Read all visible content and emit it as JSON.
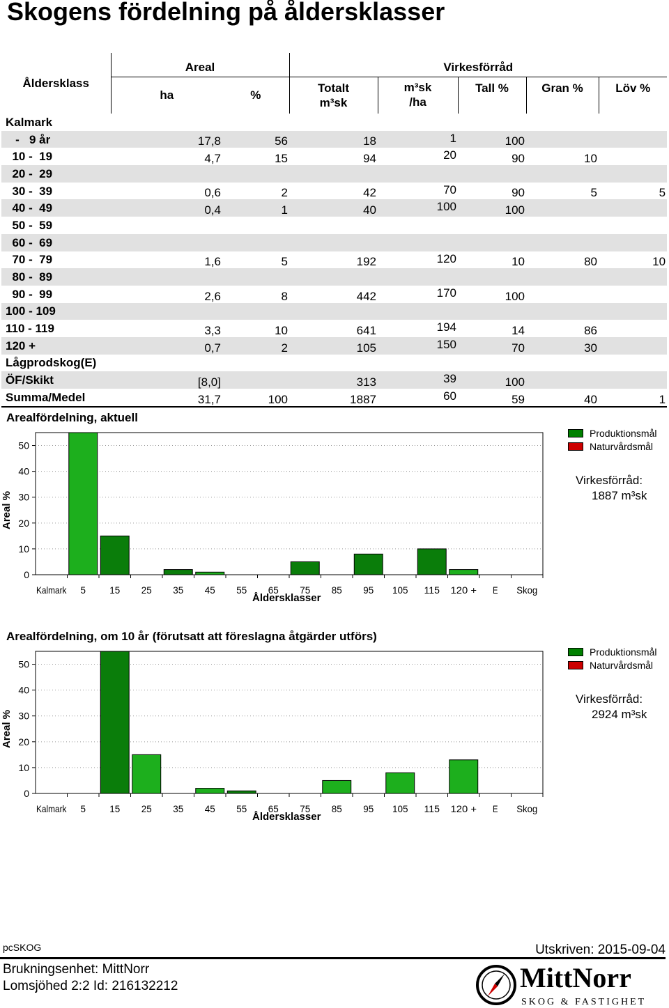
{
  "page_title": "Skogens fördelning på åldersklasser",
  "table": {
    "header": {
      "aldersklass": "Åldersklass",
      "areal": "Areal",
      "ha": "ha",
      "pct": "%",
      "virkesforrad": "Virkesförråd",
      "totalt_1": "Totalt",
      "totalt_2": "m³sk",
      "m3ha_1": "m³sk",
      "m3ha_2": "/ha",
      "tall": "Tall %",
      "gran": "Gran %",
      "lov": "Löv %"
    },
    "rows": [
      {
        "klass": "Kalmark",
        "ha": "",
        "pct": "",
        "tot": "",
        "m3ha": "",
        "tall": "",
        "gran": "",
        "lov": ""
      },
      {
        "klass": "   -   9 år",
        "ha": "17,8",
        "pct": "56",
        "tot": "18",
        "m3ha": "1",
        "tall": "100",
        "gran": "",
        "lov": ""
      },
      {
        "klass": "  10 -  19",
        "ha": "4,7",
        "pct": "15",
        "tot": "94",
        "m3ha": "20",
        "tall": "90",
        "gran": "10",
        "lov": ""
      },
      {
        "klass": "  20 -  29",
        "ha": "",
        "pct": "",
        "tot": "",
        "m3ha": "",
        "tall": "",
        "gran": "",
        "lov": ""
      },
      {
        "klass": "  30 -  39",
        "ha": "0,6",
        "pct": "2",
        "tot": "42",
        "m3ha": "70",
        "tall": "90",
        "gran": "5",
        "lov": "5"
      },
      {
        "klass": "  40 -  49",
        "ha": "0,4",
        "pct": "1",
        "tot": "40",
        "m3ha": "100",
        "tall": "100",
        "gran": "",
        "lov": ""
      },
      {
        "klass": "  50 -  59",
        "ha": "",
        "pct": "",
        "tot": "",
        "m3ha": "",
        "tall": "",
        "gran": "",
        "lov": ""
      },
      {
        "klass": "  60 -  69",
        "ha": "",
        "pct": "",
        "tot": "",
        "m3ha": "",
        "tall": "",
        "gran": "",
        "lov": ""
      },
      {
        "klass": "  70 -  79",
        "ha": "1,6",
        "pct": "5",
        "tot": "192",
        "m3ha": "120",
        "tall": "10",
        "gran": "80",
        "lov": "10"
      },
      {
        "klass": "  80 -  89",
        "ha": "",
        "pct": "",
        "tot": "",
        "m3ha": "",
        "tall": "",
        "gran": "",
        "lov": ""
      },
      {
        "klass": "  90 -  99",
        "ha": "2,6",
        "pct": "8",
        "tot": "442",
        "m3ha": "170",
        "tall": "100",
        "gran": "",
        "lov": ""
      },
      {
        "klass": "100 - 109",
        "ha": "",
        "pct": "",
        "tot": "",
        "m3ha": "",
        "tall": "",
        "gran": "",
        "lov": ""
      },
      {
        "klass": "110 - 119",
        "ha": "3,3",
        "pct": "10",
        "tot": "641",
        "m3ha": "194",
        "tall": "14",
        "gran": "86",
        "lov": ""
      },
      {
        "klass": "120 +",
        "ha": "0,7",
        "pct": "2",
        "tot": "105",
        "m3ha": "150",
        "tall": "70",
        "gran": "30",
        "lov": ""
      },
      {
        "klass": "Lågprodskog(E)",
        "ha": "",
        "pct": "",
        "tot": "",
        "m3ha": "",
        "tall": "",
        "gran": "",
        "lov": ""
      },
      {
        "klass": "ÖF/Skikt",
        "ha": "[8,0]",
        "pct": "",
        "tot": "313",
        "m3ha": "39",
        "tall": "100",
        "gran": "",
        "lov": ""
      },
      {
        "klass": "Summa/Medel",
        "ha": "31,7",
        "pct": "100",
        "tot": "1887",
        "m3ha": "60",
        "tall": "59",
        "gran": "40",
        "lov": "1"
      }
    ]
  },
  "legend": {
    "produktion": "Produktionsmål",
    "natur": "Naturvårdsmål",
    "produktion_color": "#008000",
    "natur_color": "#cc0000"
  },
  "chart_data": [
    {
      "type": "bar",
      "title": "Arealfördelning, aktuell",
      "xlabel": "Åldersklasser",
      "ylabel": "Areal %",
      "ylim": [
        0,
        55
      ],
      "yticks": [
        0,
        10,
        20,
        30,
        40,
        50
      ],
      "grid": true,
      "legend_position": "right",
      "categories": [
        "Kalmark",
        "5",
        "15",
        "25",
        "35",
        "45",
        "55",
        "65",
        "75",
        "85",
        "95",
        "105",
        "115",
        "120 +",
        "E",
        "Skog"
      ],
      "series": [
        {
          "name": "Produktionsmål",
          "values": [
            0,
            56,
            15,
            0,
            2,
            1,
            0,
            0,
            5,
            0,
            8,
            0,
            10,
            2,
            0,
            0
          ]
        },
        {
          "name": "Naturvårdsmål",
          "values": [
            0,
            0,
            0,
            0,
            0,
            0,
            0,
            0,
            0,
            0,
            0,
            0,
            0,
            0,
            0,
            0
          ]
        }
      ],
      "virkesforrad_label": "Virkesförråd:",
      "virkesforrad_value": "1887 m³sk"
    },
    {
      "type": "bar",
      "title": "Arealfördelning, om 10 år (förutsatt att föreslagna åtgärder utförs)",
      "xlabel": "Åldersklasser",
      "ylabel": "Areal %",
      "ylim": [
        0,
        55
      ],
      "yticks": [
        0,
        10,
        20,
        30,
        40,
        50
      ],
      "grid": true,
      "legend_position": "right",
      "categories": [
        "Kalmark",
        "5",
        "15",
        "25",
        "35",
        "45",
        "55",
        "65",
        "75",
        "85",
        "95",
        "105",
        "115",
        "120 +",
        "E",
        "Skog"
      ],
      "series": [
        {
          "name": "Produktionsmål",
          "values": [
            0,
            0,
            56,
            15,
            0,
            2,
            1,
            0,
            0,
            5,
            0,
            8,
            0,
            13,
            0,
            0
          ]
        },
        {
          "name": "Naturvårdsmål",
          "values": [
            0,
            0,
            0,
            0,
            0,
            0,
            0,
            0,
            0,
            0,
            0,
            0,
            0,
            0,
            0,
            0
          ]
        }
      ],
      "virkesforrad_label": "Virkesförråd:",
      "virkesforrad_value": "2924 m³sk"
    }
  ],
  "footer": {
    "program": "pcSKOG",
    "utskriven": "Utskriven: 2015-09-04",
    "brukningsenhet": "Brukningsenhet: MittNorr",
    "id_line": "Lomsjöhed 2:2 Id: 216132212",
    "logo_text": "MittNorr",
    "logo_sub": "SKOG & FASTIGHET"
  }
}
